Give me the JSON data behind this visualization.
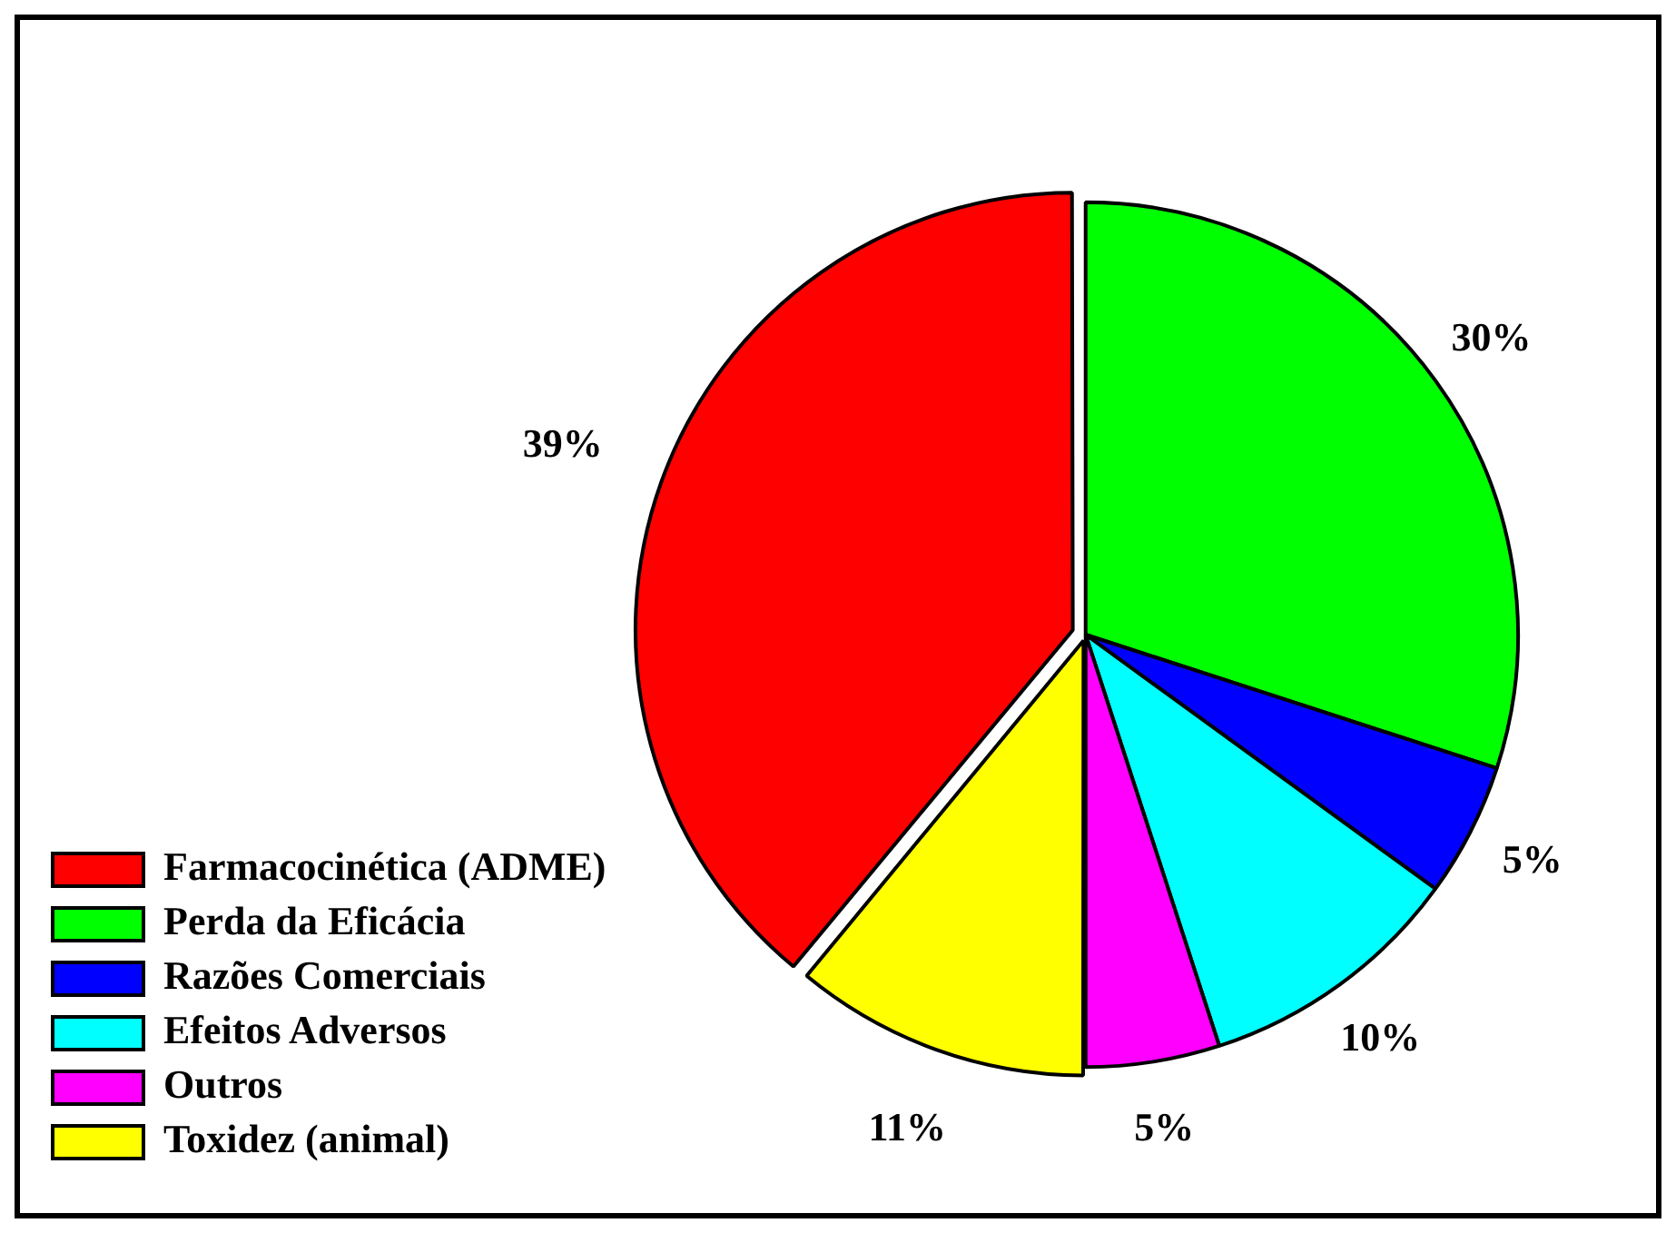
{
  "chart_data": {
    "type": "pie",
    "categories": [
      "Farmacocinética (ADME)",
      "Perda da Eficácia",
      "Razões Comerciais",
      "Efeitos Adversos",
      "Outros",
      "Toxidez (animal)"
    ],
    "values": [
      39,
      30,
      5,
      10,
      5,
      11
    ],
    "value_labels": [
      "39%",
      "30%",
      "5%",
      "10%",
      "5%",
      "11%"
    ],
    "colors": [
      "#ff0000",
      "#00ff00",
      "#0000ff",
      "#00ffff",
      "#ff00ff",
      "#ffff00"
    ],
    "legend": "bottom left"
  }
}
